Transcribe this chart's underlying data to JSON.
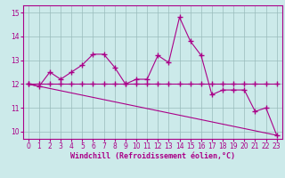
{
  "xlabel": "Windchill (Refroidissement éolien,°C)",
  "bg_color": "#cceaea",
  "line_color": "#aa0088",
  "grid_color": "#99bbbb",
  "xlim": [
    -0.5,
    23.5
  ],
  "ylim": [
    9.7,
    15.3
  ],
  "yticks": [
    10,
    11,
    12,
    13,
    14,
    15
  ],
  "xticks": [
    0,
    1,
    2,
    3,
    4,
    5,
    6,
    7,
    8,
    9,
    10,
    11,
    12,
    13,
    14,
    15,
    16,
    17,
    18,
    19,
    20,
    21,
    22,
    23
  ],
  "series1_x": [
    0,
    1,
    2,
    3,
    4,
    5,
    6,
    7,
    8,
    9,
    10,
    11,
    12,
    13,
    14,
    15,
    16,
    17,
    18,
    19,
    20,
    21,
    22,
    23
  ],
  "series1_y": [
    12.0,
    11.9,
    12.5,
    12.2,
    12.5,
    12.8,
    13.25,
    13.25,
    12.7,
    12.0,
    12.2,
    12.2,
    13.2,
    12.9,
    14.8,
    13.8,
    13.2,
    11.55,
    11.75,
    11.75,
    11.75,
    10.85,
    11.0,
    9.85
  ],
  "series2_x": [
    0,
    1,
    2,
    3,
    4,
    5,
    6,
    7,
    8,
    9,
    10,
    11,
    12,
    13,
    14,
    15,
    16,
    17,
    18,
    19,
    20,
    21,
    22,
    23
  ],
  "series2_y": [
    12.0,
    12.0,
    12.0,
    12.0,
    12.0,
    12.0,
    12.0,
    12.0,
    12.0,
    12.0,
    12.0,
    12.0,
    12.0,
    12.0,
    12.0,
    12.0,
    12.0,
    12.0,
    12.0,
    12.0,
    12.0,
    12.0,
    12.0,
    12.0
  ],
  "series3_x": [
    0,
    23
  ],
  "series3_y": [
    12.0,
    9.85
  ],
  "linewidth": 0.8,
  "marker_size": 4,
  "marker_ew": 1.0
}
